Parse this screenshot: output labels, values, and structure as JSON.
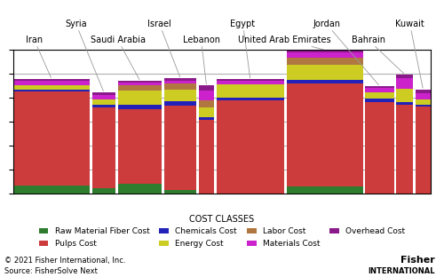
{
  "chart_data": {
    "type": "bar",
    "stacked": true,
    "categories": [
      "Iran",
      "Syria",
      "Saudi Arabia",
      "Israel",
      "Lebanon",
      "Egypt",
      "United Arab Emirates",
      "Jordan",
      "Bahrain",
      "Kuwait"
    ],
    "widths": [
      90,
      28,
      52,
      38,
      18,
      80,
      90,
      34,
      20,
      18
    ],
    "series": [
      {
        "name": "Raw Material Fiber Cost",
        "color": "#2e7d2e",
        "values": [
          18,
          12,
          22,
          8,
          0,
          0,
          15,
          0,
          0,
          0
        ]
      },
      {
        "name": "Pulps Cost",
        "color": "#cd3c3c",
        "values": [
          195,
          168,
          155,
          175,
          155,
          195,
          215,
          192,
          185,
          182
        ]
      },
      {
        "name": "Chemicals Cost",
        "color": "#2222bb",
        "values": [
          4,
          5,
          8,
          10,
          5,
          6,
          7,
          6,
          6,
          4
        ]
      },
      {
        "name": "Energy Cost",
        "color": "#cccc22",
        "values": [
          9,
          12,
          30,
          25,
          20,
          28,
          32,
          14,
          28,
          10
        ]
      },
      {
        "name": "Labor Cost",
        "color": "#b07840",
        "values": [
          0,
          0,
          12,
          12,
          14,
          0,
          14,
          0,
          0,
          0
        ]
      },
      {
        "name": "Materials Cost",
        "color": "#cc22cc",
        "values": [
          9,
          9,
          4,
          5,
          22,
          6,
          12,
          8,
          22,
          14
        ]
      },
      {
        "name": "Overhead Cost",
        "color": "#8a1a8a",
        "values": [
          5,
          6,
          5,
          6,
          10,
          4,
          5,
          5,
          8,
          8
        ]
      }
    ],
    "ylim": [
      0,
      300
    ],
    "yticks": [
      0,
      50,
      100,
      150,
      200,
      250,
      300
    ],
    "grid": true,
    "tick_labels": false,
    "legend": "lower center",
    "legend_title": "COST CLASSES",
    "annotations": [
      "© 2021 Fisher International, Inc.",
      "Source: FisherSolve Next",
      "Fisher",
      "INTERNATIONAL"
    ]
  }
}
